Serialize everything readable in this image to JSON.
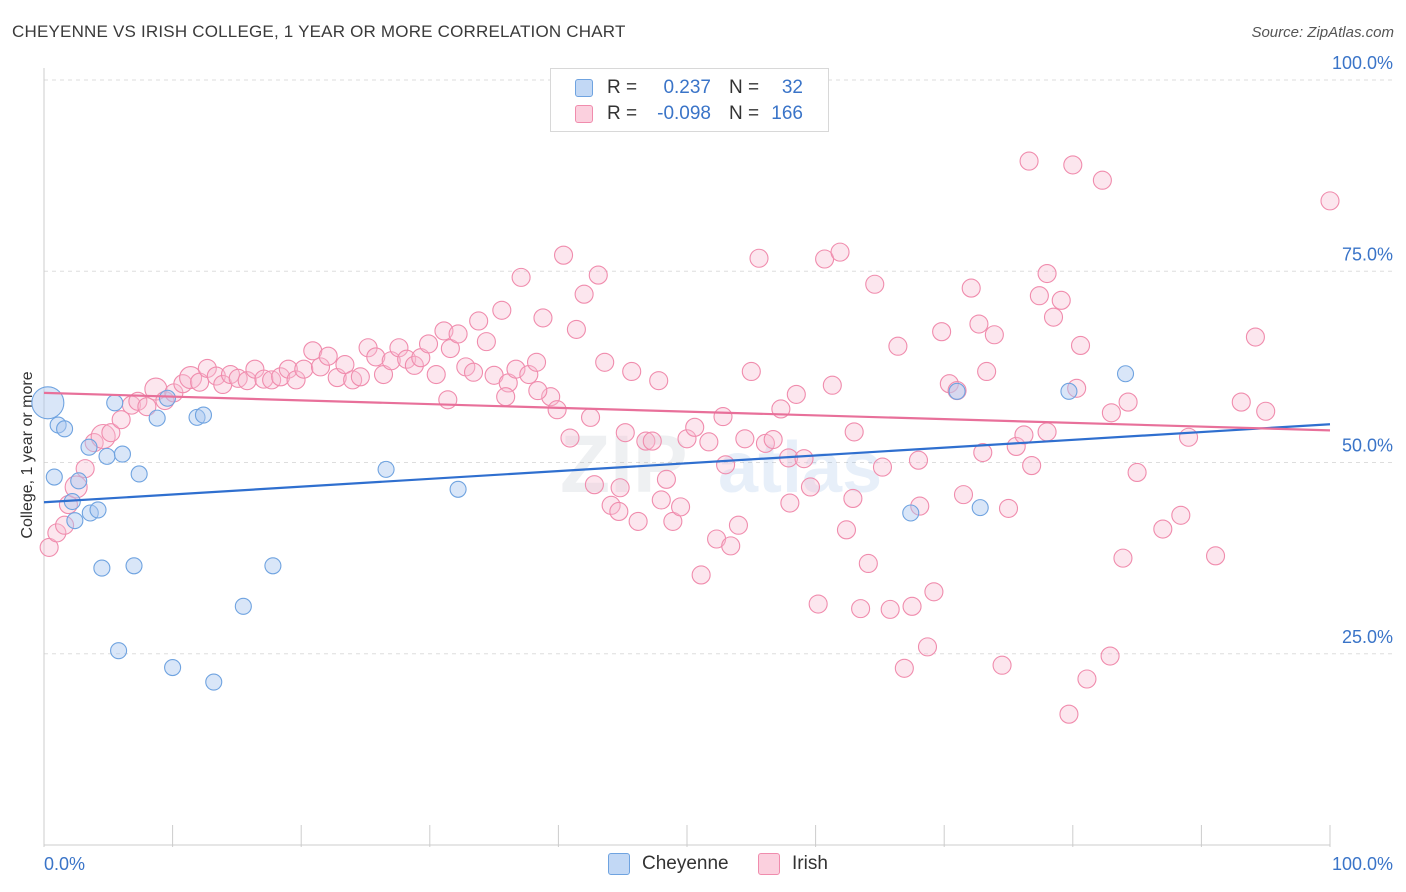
{
  "title": "CHEYENNE VS IRISH COLLEGE, 1 YEAR OR MORE CORRELATION CHART",
  "source": "Source: ZipAtlas.com",
  "watermark": {
    "zip": "ZIP",
    "atlas": "atlas"
  },
  "legend": {
    "r_label": "R =",
    "n_label": "N =",
    "series": [
      {
        "name": "Cheyenne",
        "r": "0.237",
        "n": "32",
        "color": "#6fa3e0"
      },
      {
        "name": "Irish",
        "r": "-0.098",
        "n": "166",
        "color": "#f08cad"
      }
    ]
  },
  "chart_data": {
    "type": "scatter",
    "title": "CHEYENNE VS IRISH COLLEGE, 1 YEAR OR MORE CORRELATION CHART",
    "xlabel": "",
    "ylabel": "College, 1 year or more",
    "xlim": [
      0,
      100
    ],
    "ylim": [
      0,
      100
    ],
    "x_ticks": [
      "0.0%",
      "100.0%"
    ],
    "y_ticks": [
      {
        "value": 25,
        "label": "25.0%"
      },
      {
        "value": 50,
        "label": "50.0%"
      },
      {
        "value": 75,
        "label": "75.0%"
      },
      {
        "value": 100,
        "label": "100.0%"
      }
    ],
    "grid": true,
    "legend_position": "top-center",
    "series": [
      {
        "name": "Cheyenne",
        "color": "#6fa3e0",
        "trend": {
          "x0": 0,
          "y0": 44.8,
          "x1": 100,
          "y1": 55.0
        },
        "points": [
          [
            0.3,
            57.8,
            16
          ],
          [
            0.8,
            48.1,
            8
          ],
          [
            1.1,
            54.9,
            8
          ],
          [
            1.6,
            54.4,
            8
          ],
          [
            2.2,
            44.9,
            8
          ],
          [
            2.4,
            42.4,
            8
          ],
          [
            2.7,
            47.6,
            8
          ],
          [
            3.5,
            52.0,
            8
          ],
          [
            3.6,
            43.4,
            8
          ],
          [
            4.2,
            43.8,
            8
          ],
          [
            4.5,
            36.2,
            8
          ],
          [
            4.9,
            50.8,
            8
          ],
          [
            5.5,
            57.8,
            8
          ],
          [
            5.8,
            25.4,
            8
          ],
          [
            6.1,
            51.1,
            8
          ],
          [
            7.0,
            36.5,
            8
          ],
          [
            7.4,
            48.5,
            8
          ],
          [
            8.8,
            55.8,
            8
          ],
          [
            9.6,
            58.4,
            8
          ],
          [
            10.0,
            23.2,
            8
          ],
          [
            11.9,
            55.9,
            8
          ],
          [
            12.4,
            56.2,
            8
          ],
          [
            13.2,
            21.3,
            8
          ],
          [
            15.5,
            31.2,
            8
          ],
          [
            17.8,
            36.5,
            8
          ],
          [
            26.6,
            49.1,
            8
          ],
          [
            32.2,
            46.5,
            8
          ],
          [
            67.4,
            43.4,
            8
          ],
          [
            71.0,
            59.3,
            8
          ],
          [
            72.8,
            44.1,
            8
          ],
          [
            79.7,
            59.3,
            8
          ],
          [
            84.1,
            61.6,
            8
          ]
        ]
      },
      {
        "name": "Irish",
        "color": "#f08cad",
        "trend": {
          "x0": 0,
          "y0": 59.1,
          "x1": 100,
          "y1": 54.2
        },
        "points": [
          [
            0.4,
            38.9,
            9
          ],
          [
            1.0,
            40.8,
            9
          ],
          [
            1.6,
            41.8,
            9
          ],
          [
            1.9,
            44.5,
            9
          ],
          [
            2.5,
            46.8,
            11
          ],
          [
            3.2,
            49.2,
            9
          ],
          [
            3.9,
            52.6,
            9
          ],
          [
            4.6,
            53.4,
            12
          ],
          [
            5.2,
            53.9,
            9
          ],
          [
            6.0,
            55.6,
            9
          ],
          [
            6.8,
            57.5,
            9
          ],
          [
            7.3,
            58.0,
            9
          ],
          [
            8.0,
            57.3,
            9
          ],
          [
            8.7,
            59.6,
            11
          ],
          [
            9.4,
            58.1,
            9
          ],
          [
            10.1,
            59.1,
            9
          ],
          [
            10.8,
            60.3,
            9
          ],
          [
            11.4,
            61.1,
            11
          ],
          [
            12.1,
            60.5,
            9
          ],
          [
            12.7,
            62.3,
            9
          ],
          [
            13.4,
            61.3,
            9
          ],
          [
            13.9,
            60.2,
            9
          ],
          [
            14.5,
            61.5,
            9
          ],
          [
            15.1,
            61.0,
            9
          ],
          [
            15.8,
            60.7,
            9
          ],
          [
            16.4,
            62.2,
            9
          ],
          [
            17.1,
            60.9,
            9
          ],
          [
            17.7,
            60.8,
            9
          ],
          [
            18.4,
            61.2,
            9
          ],
          [
            19.0,
            62.2,
            9
          ],
          [
            19.6,
            60.8,
            9
          ],
          [
            20.2,
            62.2,
            9
          ],
          [
            20.9,
            64.6,
            9
          ],
          [
            21.5,
            62.5,
            9
          ],
          [
            22.1,
            63.9,
            9
          ],
          [
            22.8,
            61.1,
            9
          ],
          [
            23.4,
            62.8,
            9
          ],
          [
            24.0,
            60.8,
            9
          ],
          [
            24.6,
            61.2,
            9
          ],
          [
            25.2,
            65.0,
            9
          ],
          [
            25.8,
            63.8,
            9
          ],
          [
            26.4,
            61.5,
            9
          ],
          [
            27.0,
            63.3,
            9
          ],
          [
            27.6,
            65.0,
            9
          ],
          [
            28.2,
            63.5,
            9
          ],
          [
            28.8,
            62.7,
            9
          ],
          [
            29.3,
            63.7,
            9
          ],
          [
            29.9,
            65.5,
            9
          ],
          [
            30.5,
            61.5,
            9
          ],
          [
            31.1,
            67.2,
            9
          ],
          [
            31.6,
            64.9,
            9
          ],
          [
            32.2,
            66.8,
            9
          ],
          [
            32.8,
            62.5,
            9
          ],
          [
            33.4,
            61.8,
            9
          ],
          [
            33.8,
            68.5,
            9
          ],
          [
            34.4,
            65.8,
            9
          ],
          [
            35.0,
            61.4,
            9
          ],
          [
            35.6,
            69.9,
            9
          ],
          [
            36.1,
            60.4,
            9
          ],
          [
            36.7,
            62.2,
            9
          ],
          [
            37.1,
            74.2,
            9
          ],
          [
            37.7,
            61.5,
            9
          ],
          [
            38.3,
            63.1,
            9
          ],
          [
            38.8,
            68.9,
            9
          ],
          [
            39.4,
            58.6,
            9
          ],
          [
            39.9,
            56.9,
            9
          ],
          [
            40.4,
            77.1,
            9
          ],
          [
            40.9,
            53.2,
            9
          ],
          [
            41.4,
            67.4,
            9
          ],
          [
            42.0,
            72.0,
            9
          ],
          [
            42.5,
            55.9,
            9
          ],
          [
            43.1,
            74.5,
            9
          ],
          [
            43.6,
            63.1,
            9
          ],
          [
            44.1,
            44.4,
            9
          ],
          [
            44.7,
            43.6,
            9
          ],
          [
            45.2,
            53.9,
            9
          ],
          [
            45.7,
            61.9,
            9
          ],
          [
            46.2,
            42.3,
            9
          ],
          [
            46.8,
            52.8,
            9
          ],
          [
            47.3,
            52.8,
            9
          ],
          [
            47.8,
            60.7,
            9
          ],
          [
            48.4,
            47.8,
            9
          ],
          [
            48.9,
            42.3,
            9
          ],
          [
            49.5,
            44.2,
            9
          ],
          [
            50.0,
            53.1,
            9
          ],
          [
            50.6,
            54.6,
            9
          ],
          [
            51.1,
            35.3,
            9
          ],
          [
            51.7,
            52.7,
            9
          ],
          [
            52.3,
            40.0,
            9
          ],
          [
            52.8,
            56.0,
            9
          ],
          [
            53.4,
            39.1,
            9
          ],
          [
            54.0,
            41.8,
            9
          ],
          [
            54.5,
            53.1,
            9
          ],
          [
            55.0,
            61.9,
            9
          ],
          [
            55.6,
            76.7,
            9
          ],
          [
            56.1,
            52.5,
            9
          ],
          [
            56.7,
            53.0,
            9
          ],
          [
            57.3,
            57.0,
            9
          ],
          [
            57.9,
            50.6,
            9
          ],
          [
            58.5,
            58.9,
            9
          ],
          [
            59.1,
            50.5,
            9
          ],
          [
            59.6,
            46.8,
            9
          ],
          [
            60.2,
            31.5,
            9
          ],
          [
            60.7,
            76.6,
            9
          ],
          [
            61.3,
            60.1,
            9
          ],
          [
            61.9,
            77.5,
            9
          ],
          [
            62.4,
            41.2,
            9
          ],
          [
            62.9,
            45.3,
            9
          ],
          [
            63.5,
            30.9,
            9
          ],
          [
            64.1,
            36.8,
            9
          ],
          [
            64.6,
            73.3,
            9
          ],
          [
            65.2,
            49.4,
            9
          ],
          [
            65.8,
            30.8,
            9
          ],
          [
            66.4,
            65.2,
            9
          ],
          [
            66.9,
            23.1,
            9
          ],
          [
            67.5,
            31.2,
            9
          ],
          [
            68.1,
            44.3,
            9
          ],
          [
            68.7,
            25.9,
            9
          ],
          [
            69.2,
            33.1,
            9
          ],
          [
            69.8,
            67.1,
            9
          ],
          [
            70.4,
            60.3,
            9
          ],
          [
            71.0,
            59.4,
            9
          ],
          [
            71.5,
            45.8,
            9
          ],
          [
            72.1,
            72.8,
            9
          ],
          [
            72.7,
            68.1,
            9
          ],
          [
            73.3,
            61.9,
            9
          ],
          [
            73.9,
            66.7,
            9
          ],
          [
            74.5,
            23.5,
            9
          ],
          [
            75.0,
            44.0,
            9
          ],
          [
            75.6,
            52.1,
            9
          ],
          [
            76.2,
            53.6,
            9
          ],
          [
            76.8,
            49.6,
            9
          ],
          [
            77.4,
            71.8,
            9
          ],
          [
            78.0,
            74.7,
            9
          ],
          [
            78.5,
            69.0,
            9
          ],
          [
            79.1,
            71.2,
            9
          ],
          [
            79.7,
            17.1,
            9
          ],
          [
            80.3,
            59.7,
            9
          ],
          [
            80.6,
            65.3,
            9
          ],
          [
            81.1,
            21.7,
            9
          ],
          [
            82.3,
            86.9,
            9
          ],
          [
            82.9,
            24.7,
            9
          ],
          [
            83.9,
            37.5,
            9
          ],
          [
            84.3,
            57.9,
            9
          ],
          [
            85.0,
            48.7,
            9
          ],
          [
            76.6,
            89.4,
            9
          ],
          [
            80.0,
            88.9,
            9
          ],
          [
            87.0,
            41.3,
            9
          ],
          [
            88.4,
            43.1,
            9
          ],
          [
            91.1,
            37.8,
            9
          ],
          [
            93.1,
            57.9,
            9
          ],
          [
            94.2,
            66.4,
            9
          ],
          [
            100.0,
            84.2,
            9
          ],
          [
            31.4,
            58.2,
            9
          ],
          [
            35.9,
            58.6,
            9
          ],
          [
            38.4,
            59.4,
            9
          ],
          [
            42.8,
            47.1,
            9
          ],
          [
            44.8,
            46.7,
            9
          ],
          [
            48.0,
            45.1,
            9
          ],
          [
            53.0,
            49.7,
            9
          ],
          [
            58.0,
            44.7,
            9
          ],
          [
            63.0,
            54.0,
            9
          ],
          [
            68.0,
            50.3,
            9
          ],
          [
            73.0,
            51.3,
            9
          ],
          [
            78.0,
            54.0,
            9
          ],
          [
            83.0,
            56.5,
            9
          ],
          [
            89.0,
            53.3,
            9
          ],
          [
            95.0,
            56.7,
            9
          ]
        ]
      }
    ]
  }
}
